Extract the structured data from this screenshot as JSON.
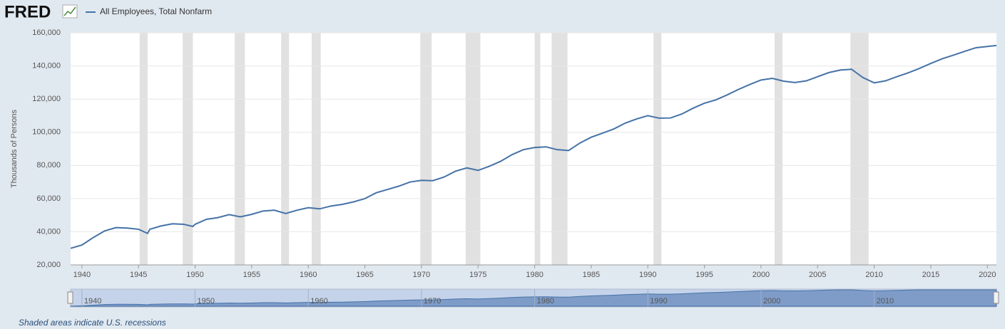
{
  "logo": "FRED",
  "footnote": "Shaded areas indicate U.S. recessions",
  "chart_data": {
    "type": "line",
    "y_label": "Thousands of Persons",
    "x": [
      1939,
      1940,
      1941,
      1942,
      1943,
      1944,
      1945,
      1945.8,
      1946,
      1947,
      1948,
      1949,
      1949.8,
      1950,
      1951,
      1952,
      1953,
      1954,
      1955,
      1956,
      1957,
      1958,
      1959,
      1960,
      1961,
      1962,
      1963,
      1964,
      1965,
      1966,
      1967,
      1968,
      1969,
      1970,
      1971,
      1972,
      1973,
      1974,
      1975,
      1976,
      1977,
      1978,
      1979,
      1980,
      1981,
      1982,
      1983,
      1984,
      1985,
      1986,
      1987,
      1988,
      1989,
      1990,
      1991,
      1992,
      1993,
      1994,
      1995,
      1996,
      1997,
      1998,
      1999,
      2000,
      2001,
      2002,
      2003,
      2004,
      2005,
      2006,
      2007,
      2008,
      2009,
      2010,
      2011,
      2012,
      2013,
      2014,
      2015,
      2016,
      2017,
      2018,
      2019,
      2020.8
    ],
    "series": [
      {
        "name": "All Employees, Total Nonfarm",
        "color": "#4572a7",
        "values": [
          30000,
          32000,
          36500,
          40500,
          42500,
          42200,
          41500,
          39000,
          41500,
          43500,
          44800,
          44500,
          43200,
          44500,
          47500,
          48500,
          50300,
          49000,
          50500,
          52500,
          53000,
          51000,
          53000,
          54500,
          53800,
          55500,
          56500,
          58000,
          60000,
          63500,
          65500,
          67500,
          70000,
          71000,
          70800,
          73000,
          76500,
          78500,
          77000,
          79500,
          82500,
          86500,
          89500,
          90800,
          91200,
          89500,
          89000,
          93500,
          97000,
          99500,
          102000,
          105500,
          108000,
          110000,
          108500,
          108600,
          111000,
          114500,
          117500,
          119500,
          122500,
          125800,
          128800,
          131500,
          132500,
          130800,
          130000,
          131000,
          133500,
          136000,
          137500,
          138000,
          133000,
          129800,
          131000,
          133500,
          135800,
          138500,
          141500,
          144300,
          146500,
          148800,
          151000,
          152300
        ]
      }
    ],
    "recessions": [
      [
        1945.1,
        1945.8
      ],
      [
        1948.9,
        1949.8
      ],
      [
        1953.5,
        1954.4
      ],
      [
        1957.6,
        1958.3
      ],
      [
        1960.3,
        1961.1
      ],
      [
        1969.9,
        1970.9
      ],
      [
        1973.9,
        1975.2
      ],
      [
        1980.0,
        1980.5
      ],
      [
        1981.5,
        1982.9
      ],
      [
        1990.5,
        1991.2
      ],
      [
        2001.2,
        2001.9
      ],
      [
        2007.9,
        2009.5
      ]
    ],
    "xlim": [
      1939,
      2020.8
    ],
    "ylim": [
      20000,
      160000
    ],
    "xticks": [
      1940,
      1945,
      1950,
      1955,
      1960,
      1965,
      1970,
      1975,
      1980,
      1985,
      1990,
      1995,
      2000,
      2005,
      2010,
      2015,
      2020
    ],
    "yticks": [
      {
        "value": 20000,
        "label": "20,000"
      },
      {
        "value": 40000,
        "label": "40,000"
      },
      {
        "value": 60000,
        "label": "60,000"
      },
      {
        "value": 80000,
        "label": "80,000"
      },
      {
        "value": 100000,
        "label": "100,000"
      },
      {
        "value": 120000,
        "label": "120,000"
      },
      {
        "value": 140000,
        "label": "140,000"
      },
      {
        "value": 160000,
        "label": "160,000"
      }
    ],
    "navigator_ticks": [
      1940,
      1950,
      1960,
      1970,
      1980,
      1990,
      2000,
      2010
    ],
    "grid": true
  }
}
